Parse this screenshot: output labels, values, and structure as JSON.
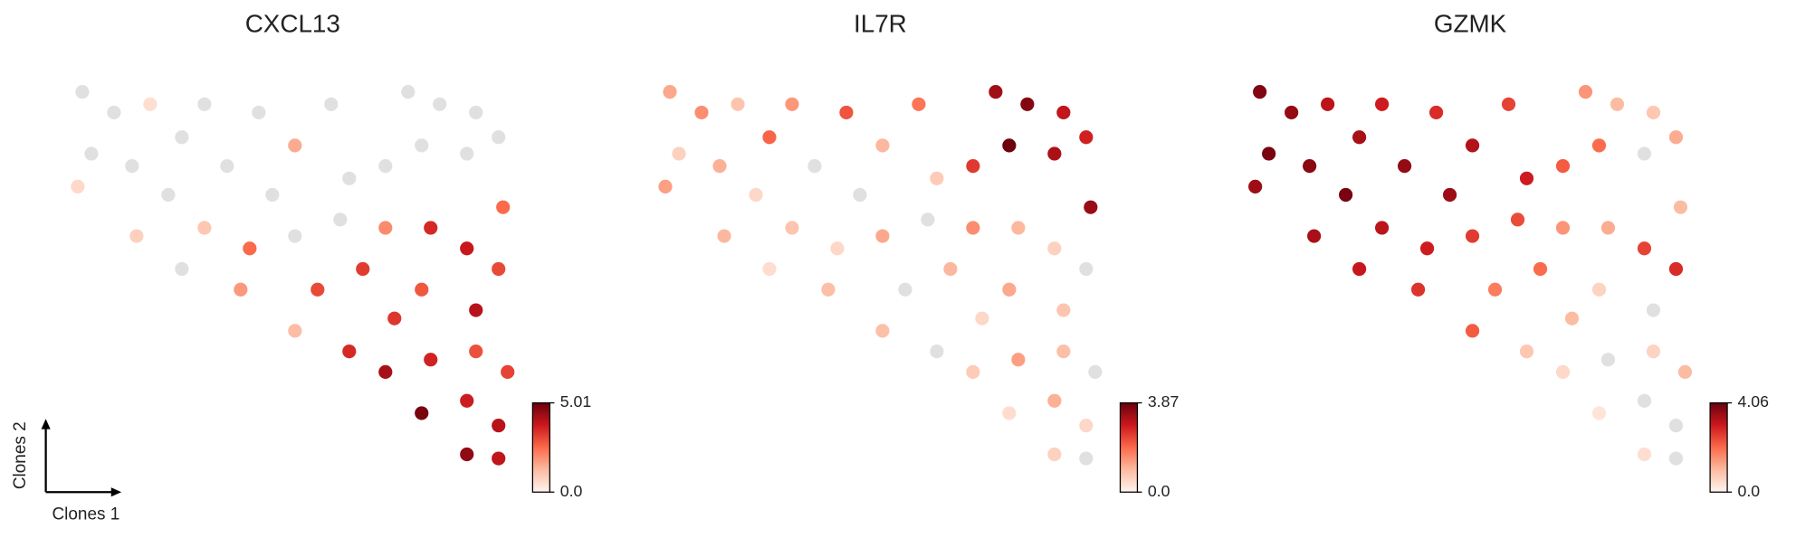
{
  "chart_data": [
    {
      "type": "scatter",
      "title": "CXCL13",
      "xlabel": "Clones 1",
      "ylabel": "Clones 2",
      "xlim": [
        0,
        100
      ],
      "ylim": [
        0,
        100
      ],
      "x": [
        3,
        10,
        18,
        5,
        14,
        25,
        2,
        22,
        30,
        35,
        42,
        50,
        58,
        62,
        45,
        75,
        82,
        90,
        78,
        88,
        95,
        70,
        96,
        30,
        40,
        50,
        60,
        38,
        55,
        65,
        70,
        80,
        88,
        95,
        78,
        90,
        72,
        62,
        70,
        80,
        90,
        97,
        78,
        88,
        95,
        88,
        95,
        15,
        25,
        50
      ],
      "y": [
        93,
        88,
        90,
        78,
        75,
        82,
        70,
        68,
        90,
        75,
        88,
        80,
        90,
        72,
        68,
        93,
        90,
        88,
        80,
        78,
        82,
        75,
        65,
        60,
        55,
        58,
        62,
        45,
        45,
        50,
        60,
        60,
        55,
        50,
        45,
        40,
        38,
        30,
        25,
        28,
        30,
        25,
        15,
        18,
        12,
        5,
        4,
        58,
        50,
        35
      ],
      "values": [
        0,
        0,
        0.5,
        0,
        0,
        0,
        0.6,
        0,
        0,
        0,
        0,
        1.5,
        0,
        0,
        0,
        0,
        0,
        0,
        0,
        0,
        0,
        0,
        2.5,
        1.0,
        2.5,
        0,
        0,
        1.8,
        3.0,
        3.2,
        2.0,
        3.5,
        3.8,
        3.0,
        2.8,
        4.0,
        3.3,
        3.5,
        4.2,
        3.6,
        2.9,
        3.1,
        4.8,
        3.7,
        4.0,
        4.5,
        3.9,
        0.8,
        0,
        1.2
      ],
      "clim": [
        0,
        5.01
      ],
      "cticks": [
        {
          "value": 0,
          "label": "0.0"
        },
        5.01
      ],
      "colors": [
        "#fff5f0",
        "#fcbba1",
        "#fb6a4a",
        "#cb181d",
        "#67000d"
      ],
      "zero_color": "#e0e0e0"
    },
    {
      "type": "scatter",
      "title": "IL7R",
      "xlim": [
        0,
        100
      ],
      "ylim": [
        0,
        100
      ],
      "x": [
        3,
        10,
        18,
        5,
        14,
        25,
        2,
        22,
        30,
        35,
        42,
        50,
        58,
        62,
        45,
        75,
        82,
        90,
        78,
        88,
        95,
        70,
        96,
        30,
        40,
        50,
        60,
        38,
        55,
        65,
        70,
        80,
        88,
        95,
        78,
        90,
        72,
        62,
        70,
        80,
        90,
        97,
        78,
        88,
        95,
        88,
        95,
        15,
        25,
        50
      ],
      "y": [
        93,
        88,
        90,
        78,
        75,
        82,
        70,
        68,
        90,
        75,
        88,
        80,
        90,
        72,
        68,
        93,
        90,
        88,
        80,
        78,
        82,
        75,
        65,
        60,
        55,
        58,
        62,
        45,
        45,
        50,
        60,
        60,
        55,
        50,
        45,
        40,
        38,
        30,
        25,
        28,
        30,
        25,
        15,
        18,
        12,
        5,
        4,
        58,
        50,
        35
      ],
      "values": [
        1.2,
        1.5,
        0.8,
        0.6,
        1.1,
        2.0,
        1.3,
        0.5,
        1.4,
        0,
        2.2,
        1.0,
        1.8,
        0.7,
        0,
        3.3,
        3.6,
        3.0,
        3.8,
        3.2,
        2.8,
        2.5,
        3.4,
        0.8,
        0.5,
        1.2,
        0,
        0.9,
        0,
        1.0,
        1.5,
        1.0,
        0.6,
        0,
        1.2,
        0.8,
        0.5,
        0,
        0.7,
        1.3,
        0.9,
        0,
        0.4,
        1.1,
        0.5,
        0.6,
        0,
        1.0,
        0.4,
        0.9
      ],
      "clim": [
        0,
        3.87
      ],
      "cticks": [
        {
          "value": 0,
          "label": "0.0"
        },
        3.87
      ],
      "colors": [
        "#fff5f0",
        "#fcbba1",
        "#fb6a4a",
        "#cb181d",
        "#67000d"
      ],
      "zero_color": "#e0e0e0"
    },
    {
      "type": "scatter",
      "title": "GZMK",
      "xlim": [
        0,
        100
      ],
      "ylim": [
        0,
        100
      ],
      "x": [
        3,
        10,
        18,
        5,
        14,
        25,
        2,
        22,
        30,
        35,
        42,
        50,
        58,
        62,
        45,
        75,
        82,
        90,
        78,
        88,
        95,
        70,
        96,
        30,
        40,
        50,
        60,
        38,
        55,
        65,
        70,
        80,
        88,
        95,
        78,
        90,
        72,
        62,
        70,
        80,
        90,
        97,
        78,
        88,
        95,
        88,
        95,
        15,
        25,
        50
      ],
      "y": [
        93,
        88,
        90,
        78,
        75,
        82,
        70,
        68,
        90,
        75,
        88,
        80,
        90,
        72,
        68,
        93,
        90,
        88,
        80,
        78,
        82,
        75,
        65,
        60,
        55,
        58,
        62,
        45,
        45,
        50,
        60,
        60,
        55,
        50,
        45,
        40,
        38,
        30,
        25,
        28,
        30,
        25,
        15,
        18,
        12,
        5,
        4,
        58,
        50,
        35
      ],
      "values": [
        3.8,
        3.6,
        3.2,
        3.9,
        3.7,
        3.4,
        3.5,
        3.9,
        3.0,
        3.6,
        2.8,
        3.3,
        2.5,
        3.0,
        3.5,
        1.5,
        1.0,
        0.8,
        2.0,
        0,
        1.2,
        2.2,
        1.0,
        3.2,
        3.0,
        2.6,
        2.4,
        2.7,
        1.8,
        2.0,
        1.5,
        1.2,
        2.5,
        2.8,
        0.6,
        0,
        1.0,
        0.8,
        0.5,
        0,
        0.6,
        1.0,
        0.3,
        0,
        0,
        0.4,
        0,
        3.4,
        3.1,
        2.2
      ],
      "clim": [
        0,
        4.06
      ],
      "cticks": [
        {
          "value": 0,
          "label": "0.0"
        },
        4.06
      ],
      "colors": [
        "#fff5f0",
        "#fcbba1",
        "#fb6a4a",
        "#cb181d",
        "#67000d"
      ],
      "zero_color": "#e0e0e0"
    }
  ]
}
